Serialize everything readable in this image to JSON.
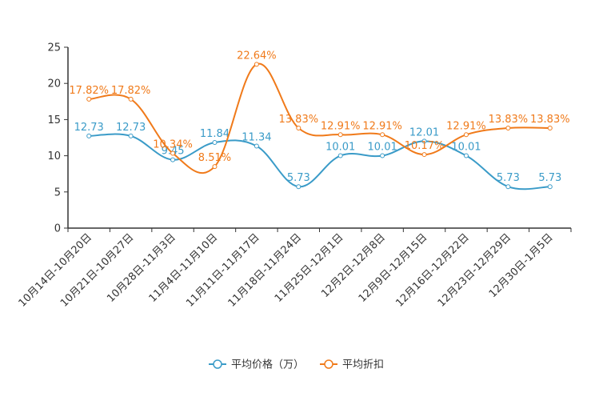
{
  "chart_data": {
    "type": "line",
    "categories": [
      "10月14日-10月20日",
      "10月21日-10月27日",
      "10月28日-11月3日",
      "11月4日-11月10日",
      "11月11日-11月17日",
      "11月18日-11月24日",
      "11月25日-12月1日",
      "12月2日-12月8日",
      "12月9日-12月15日",
      "12月16日-12月22日",
      "12月23日-12月29日",
      "12月30日-1月5日"
    ],
    "ylim": [
      0,
      25
    ],
    "yticks": [
      "0",
      "5",
      "10",
      "15",
      "20",
      "25"
    ],
    "series": [
      {
        "name": "平均价格（万）",
        "color": "#3a9bc8",
        "values": [
          12.73,
          12.73,
          9.45,
          11.84,
          11.34,
          5.73,
          10.01,
          10.01,
          12.01,
          10.01,
          5.73,
          5.73
        ],
        "labels": [
          "12.73",
          "12.73",
          "9.45",
          "11.84",
          "11.34",
          "5.73",
          "10.01",
          "10.01",
          "12.01",
          "10.01",
          "5.73",
          "5.73"
        ]
      },
      {
        "name": "平均折扣",
        "color": "#f07a1a",
        "values": [
          17.82,
          17.82,
          10.34,
          8.51,
          22.64,
          13.83,
          12.91,
          12.91,
          10.17,
          12.91,
          13.83,
          13.83
        ],
        "labels": [
          "17.82%",
          "17.82%",
          "10.34%",
          "8.51%",
          "22.64%",
          "13.83%",
          "12.91%",
          "12.91%",
          "10.17%",
          "12.91%",
          "13.83%",
          "13.83%"
        ]
      }
    ],
    "legend": {
      "position": "bottom"
    }
  }
}
